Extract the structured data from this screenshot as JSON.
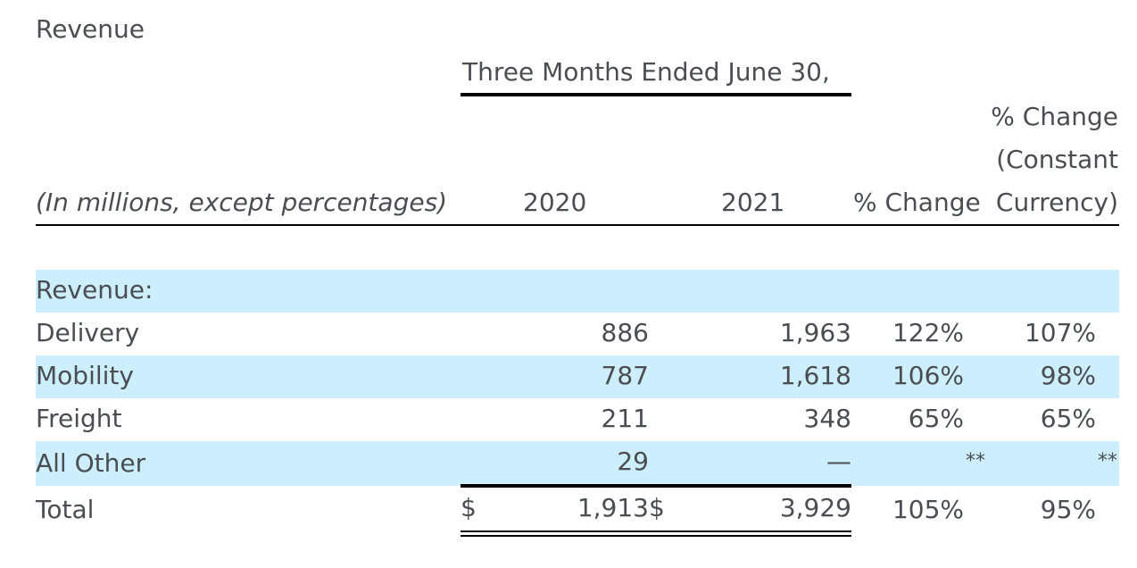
{
  "section_title": "Revenue",
  "header": {
    "period": "Three Months Ended June 30,",
    "units_label": "(In millions, except percentages)",
    "year_2020": "2020",
    "year_2021": "2021",
    "pct_change": "% Change",
    "pct_cc_line1": "% Change",
    "pct_cc_line2": "(Constant",
    "pct_cc_line3": "Currency)"
  },
  "group_label": "Revenue:",
  "rows": [
    {
      "label": "Delivery",
      "v2020": "886",
      "v2021": "1,963",
      "pct": "122%",
      "pct_cc": "107%"
    },
    {
      "label": "Mobility",
      "v2020": "787",
      "v2021": "1,618",
      "pct": "106%",
      "pct_cc": "98%"
    },
    {
      "label": "Freight",
      "v2020": "211",
      "v2021": "348",
      "pct": "65%",
      "pct_cc": "65%"
    },
    {
      "label": "All Other",
      "v2020": "29",
      "v2021": "—",
      "pct": "**",
      "pct_cc": "**"
    }
  ],
  "total": {
    "label": "Total",
    "currency_2020": "$",
    "v2020": "1,913",
    "currency_2021": "$",
    "v2021": "3,929",
    "pct": "105%",
    "pct_cc": "95%"
  }
}
